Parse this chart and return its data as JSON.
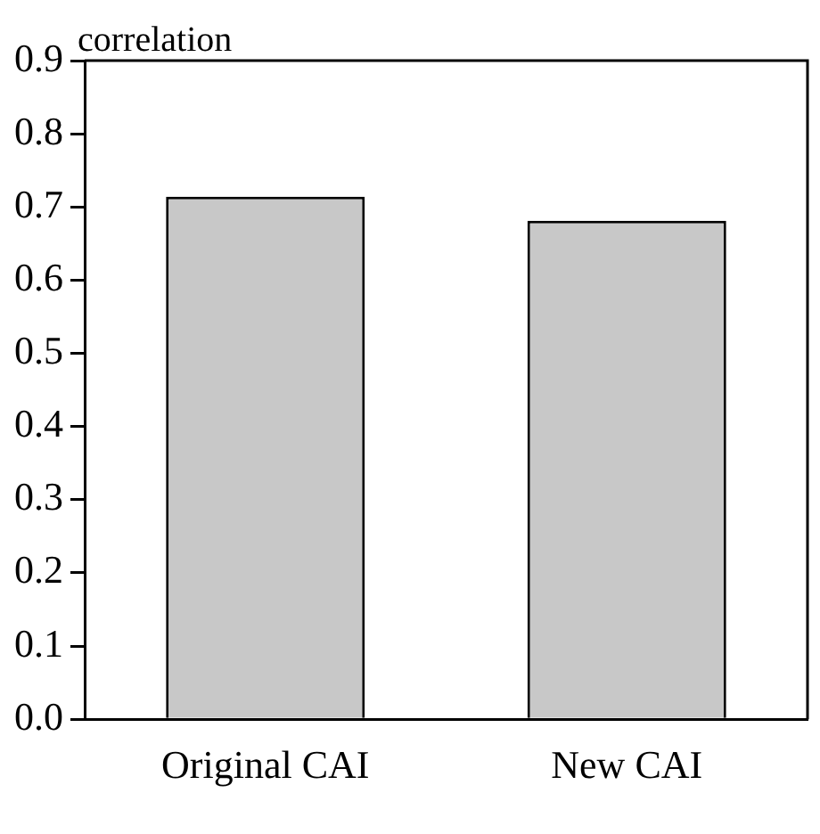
{
  "chart_data": {
    "type": "bar",
    "ylabel": "correlation",
    "categories": [
      "Original CAI",
      "New CAI"
    ],
    "values": [
      0.714,
      0.681
    ],
    "color": "#c8c8c8",
    "ylim": [
      0,
      0.9
    ],
    "yticks": [
      {
        "value": 0,
        "label": "0.0"
      },
      0.1,
      0.2,
      0.3,
      0.4,
      0.5,
      0.6,
      0.7,
      0.8,
      0.9
    ],
    "grid": false,
    "legend": false
  }
}
